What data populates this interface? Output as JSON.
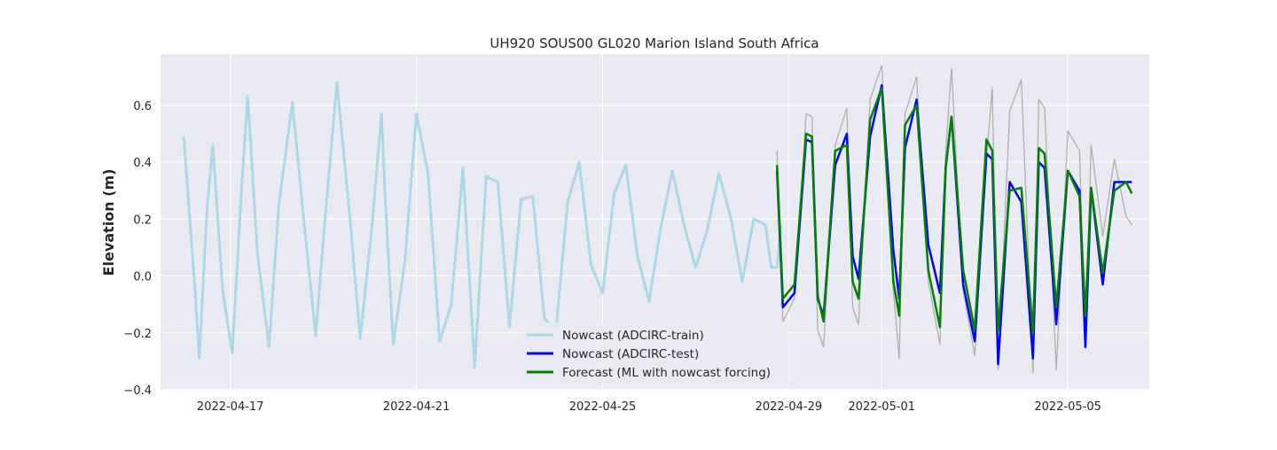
{
  "chart_data": {
    "type": "line",
    "title": "UH920 SOUS00 GL020 Marion Island South Africa",
    "xlabel": "",
    "ylabel": "Elevation (m)",
    "xlim": [
      "2022-04-15T12:00",
      "2022-05-06T18:00"
    ],
    "ylim": [
      -0.4,
      0.78
    ],
    "x_ticks": [
      "2022-04-17",
      "2022-04-21",
      "2022-04-25",
      "2022-04-29",
      "2022-05-01",
      "2022-05-05"
    ],
    "y_ticks": [
      -0.4,
      -0.2,
      0.0,
      0.2,
      0.4,
      0.6
    ],
    "y_tick_labels": [
      "−0.4",
      "−0.2",
      "0.0",
      "0.2",
      "0.4",
      "0.6"
    ],
    "grid": true,
    "legend_position": "lower-center",
    "colors": {
      "train": "#add8e6",
      "test": "#0000ff",
      "forecast": "#008000",
      "observed": "#b0b0b0",
      "plot_background": "#eaeaf2",
      "grid": "#ffffff"
    },
    "series": [
      {
        "key": "train",
        "name": "Nowcast (ADCIRC-train)",
        "x": [
          "2022-04-16T00:00",
          "2022-04-16T06:00",
          "2022-04-16T08:00",
          "2022-04-16T12:00",
          "2022-04-16T15:00",
          "2022-04-16T20:00",
          "2022-04-17T01:00",
          "2022-04-17T06:00",
          "2022-04-17T09:00",
          "2022-04-17T14:00",
          "2022-04-17T20:00",
          "2022-04-18T01:00",
          "2022-04-18T08:00",
          "2022-04-18T14:00",
          "2022-04-18T20:00",
          "2022-04-19T01:00",
          "2022-04-19T07:00",
          "2022-04-19T14:00",
          "2022-04-19T19:00",
          "2022-04-20T01:00",
          "2022-04-20T06:00",
          "2022-04-20T08:00",
          "2022-04-20T12:00",
          "2022-04-20T18:00",
          "2022-04-21T00:00",
          "2022-04-21T06:00",
          "2022-04-21T12:00",
          "2022-04-21T18:00",
          "2022-04-22T00:00",
          "2022-04-22T06:00",
          "2022-04-22T12:00",
          "2022-04-22T18:00",
          "2022-04-23T00:00",
          "2022-04-23T06:00",
          "2022-04-23T12:00",
          "2022-04-23T18:00",
          "2022-04-24T00:00",
          "2022-04-24T06:00",
          "2022-04-24T12:00",
          "2022-04-24T18:00",
          "2022-04-25T00:00",
          "2022-04-25T06:00",
          "2022-04-25T12:00",
          "2022-04-25T18:00",
          "2022-04-26T00:00",
          "2022-04-26T06:00",
          "2022-04-26T12:00",
          "2022-04-26T18:00",
          "2022-04-27T00:00",
          "2022-04-27T06:00",
          "2022-04-27T12:00",
          "2022-04-27T18:00",
          "2022-04-28T00:00",
          "2022-04-28T06:00",
          "2022-04-28T12:00",
          "2022-04-28T15:00",
          "2022-04-28T18:00",
          "2022-04-28T20:00"
        ],
        "y": [
          0.49,
          -0.07,
          -0.29,
          0.24,
          0.46,
          -0.05,
          -0.27,
          0.33,
          0.63,
          0.08,
          -0.25,
          0.25,
          0.61,
          0.19,
          -0.21,
          0.21,
          0.68,
          0.18,
          -0.22,
          0.17,
          0.57,
          0.26,
          -0.24,
          0.05,
          0.57,
          0.36,
          -0.23,
          -0.1,
          0.38,
          -0.32,
          0.35,
          0.33,
          -0.18,
          0.27,
          0.28,
          -0.15,
          -0.19,
          0.26,
          0.4,
          0.04,
          -0.06,
          0.29,
          0.39,
          0.07,
          -0.09,
          0.17,
          0.37,
          0.18,
          0.03,
          0.16,
          0.36,
          0.21,
          -0.02,
          0.2,
          0.18,
          0.03,
          0.03,
          0.18
        ]
      },
      {
        "key": "test",
        "name": "Nowcast (ADCIRC-test)",
        "x": [
          "2022-04-28T18:00",
          "2022-04-28T21:00",
          "2022-04-29T03:00",
          "2022-04-29T09:00",
          "2022-04-29T12:00",
          "2022-04-29T15:00",
          "2022-04-29T18:00",
          "2022-04-30T00:00",
          "2022-04-30T06:00",
          "2022-04-30T09:00",
          "2022-04-30T12:00",
          "2022-04-30T18:00",
          "2022-05-01T00:00",
          "2022-05-01T06:00",
          "2022-05-01T09:00",
          "2022-05-01T12:00",
          "2022-05-01T18:00",
          "2022-05-02T00:00",
          "2022-05-02T06:00",
          "2022-05-02T09:00",
          "2022-05-02T12:00",
          "2022-05-02T18:00",
          "2022-05-03T00:00",
          "2022-05-03T06:00",
          "2022-05-03T09:00",
          "2022-05-03T12:00",
          "2022-05-03T18:00",
          "2022-05-04T00:00",
          "2022-05-04T06:00",
          "2022-05-04T09:00",
          "2022-05-04T12:00",
          "2022-05-04T18:00",
          "2022-05-05T00:00",
          "2022-05-05T06:00",
          "2022-05-05T09:00",
          "2022-05-05T12:00",
          "2022-05-05T18:00",
          "2022-05-06T00:00",
          "2022-05-06T06:00",
          "2022-05-06T09:00"
        ],
        "y": [
          0.37,
          -0.11,
          -0.06,
          0.48,
          0.47,
          -0.08,
          -0.14,
          0.39,
          0.5,
          0.07,
          -0.01,
          0.49,
          0.67,
          0.09,
          -0.08,
          0.45,
          0.62,
          0.11,
          -0.06,
          0.38,
          0.56,
          -0.03,
          -0.23,
          0.43,
          0.41,
          -0.31,
          0.33,
          0.26,
          -0.29,
          0.4,
          0.38,
          -0.17,
          0.37,
          0.3,
          -0.25,
          0.31,
          -0.03,
          0.33,
          0.33,
          0.33
        ]
      },
      {
        "key": "forecast",
        "name": "Forecast (ML with nowcast forcing)",
        "x": [
          "2022-04-28T18:00",
          "2022-04-28T21:00",
          "2022-04-29T03:00",
          "2022-04-29T09:00",
          "2022-04-29T12:00",
          "2022-04-29T15:00",
          "2022-04-29T18:00",
          "2022-04-30T00:00",
          "2022-04-30T06:00",
          "2022-04-30T09:00",
          "2022-04-30T12:00",
          "2022-04-30T18:00",
          "2022-05-01T00:00",
          "2022-05-01T06:00",
          "2022-05-01T09:00",
          "2022-05-01T12:00",
          "2022-05-01T18:00",
          "2022-05-02T00:00",
          "2022-05-02T06:00",
          "2022-05-02T09:00",
          "2022-05-02T12:00",
          "2022-05-02T18:00",
          "2022-05-03T00:00",
          "2022-05-03T06:00",
          "2022-05-03T09:00",
          "2022-05-03T12:00",
          "2022-05-03T18:00",
          "2022-05-04T00:00",
          "2022-05-04T06:00",
          "2022-05-04T09:00",
          "2022-05-04T12:00",
          "2022-05-04T18:00",
          "2022-05-05T00:00",
          "2022-05-05T06:00",
          "2022-05-05T09:00",
          "2022-05-05T12:00",
          "2022-05-05T18:00",
          "2022-05-06T00:00",
          "2022-05-06T06:00",
          "2022-05-06T09:00"
        ],
        "y": [
          0.39,
          -0.08,
          -0.03,
          0.5,
          0.49,
          -0.07,
          -0.16,
          0.44,
          0.46,
          -0.02,
          -0.08,
          0.55,
          0.66,
          -0.02,
          -0.14,
          0.53,
          0.6,
          0.02,
          -0.18,
          0.38,
          0.56,
          0.02,
          -0.19,
          0.48,
          0.44,
          -0.19,
          0.3,
          0.31,
          -0.2,
          0.45,
          0.43,
          -0.11,
          0.37,
          0.28,
          -0.14,
          0.31,
          0.01,
          0.3,
          0.33,
          0.29
        ]
      },
      {
        "key": "observed",
        "name": "",
        "x": [
          "2022-04-28T18:00",
          "2022-04-28T21:00",
          "2022-04-29T03:00",
          "2022-04-29T09:00",
          "2022-04-29T12:00",
          "2022-04-29T15:00",
          "2022-04-29T18:00",
          "2022-04-30T00:00",
          "2022-04-30T06:00",
          "2022-04-30T09:00",
          "2022-04-30T12:00",
          "2022-04-30T18:00",
          "2022-05-01T00:00",
          "2022-05-01T06:00",
          "2022-05-01T09:00",
          "2022-05-01T12:00",
          "2022-05-01T18:00",
          "2022-05-02T00:00",
          "2022-05-02T06:00",
          "2022-05-02T09:00",
          "2022-05-02T12:00",
          "2022-05-02T18:00",
          "2022-05-03T00:00",
          "2022-05-03T06:00",
          "2022-05-03T09:00",
          "2022-05-03T12:00",
          "2022-05-03T18:00",
          "2022-05-04T00:00",
          "2022-05-04T06:00",
          "2022-05-04T09:00",
          "2022-05-04T12:00",
          "2022-05-04T18:00",
          "2022-05-05T00:00",
          "2022-05-05T06:00",
          "2022-05-05T09:00",
          "2022-05-05T12:00",
          "2022-05-05T18:00",
          "2022-05-06T00:00",
          "2022-05-06T06:00",
          "2022-05-06T09:00"
        ],
        "y": [
          0.44,
          -0.16,
          -0.08,
          0.57,
          0.56,
          -0.19,
          -0.25,
          0.46,
          0.59,
          -0.11,
          -0.17,
          0.62,
          0.74,
          -0.05,
          -0.29,
          0.57,
          0.7,
          -0.02,
          -0.24,
          0.44,
          0.73,
          -0.05,
          -0.28,
          0.41,
          0.66,
          -0.33,
          0.58,
          0.69,
          -0.34,
          0.62,
          0.59,
          -0.33,
          0.51,
          0.44,
          -0.23,
          0.46,
          0.14,
          0.41,
          0.21,
          0.18
        ]
      }
    ]
  }
}
